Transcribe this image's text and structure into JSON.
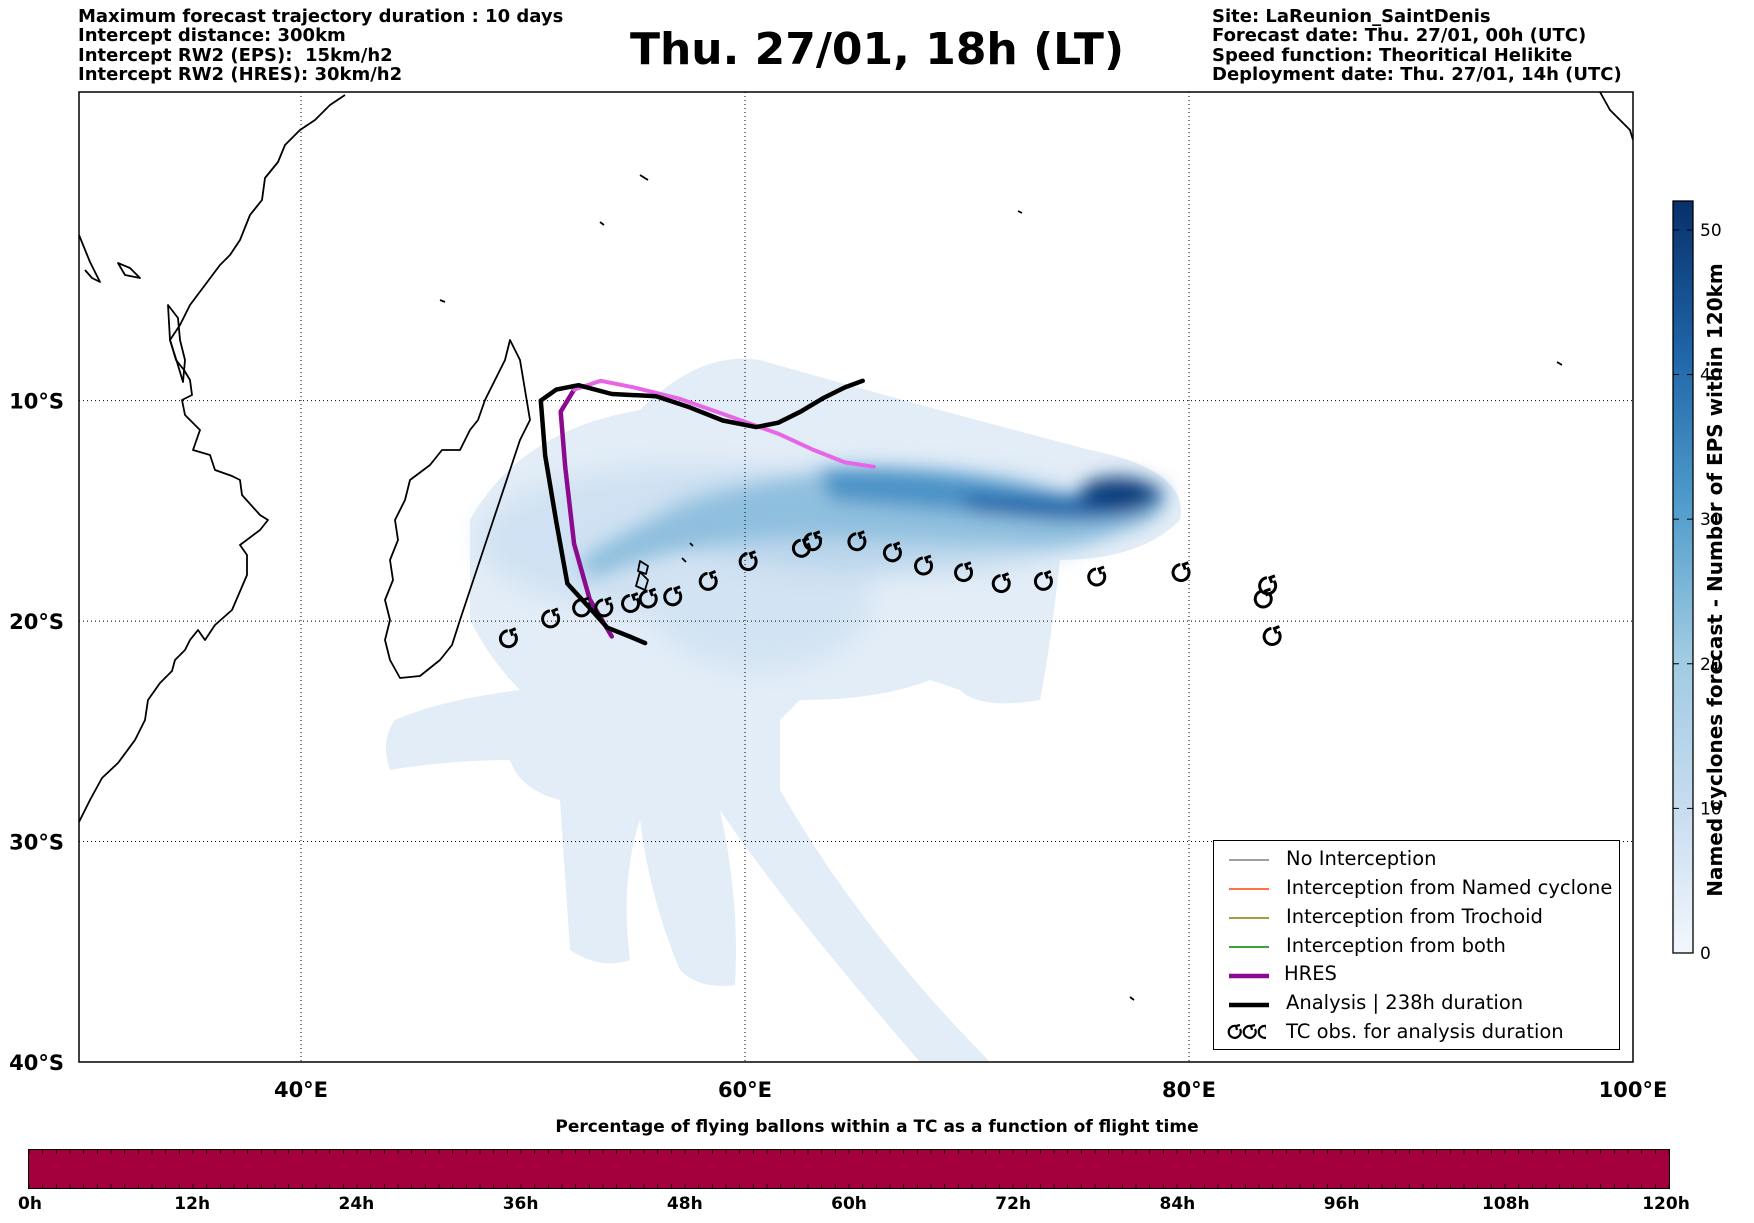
{
  "header_left": [
    "Maximum forecast trajectory duration : 10 days",
    "Intercept distance: 300km",
    "Intercept RW2 (EPS):  15km/h2",
    "Intercept RW2 (HRES): 30km/h2"
  ],
  "header_right": [
    "Site: LaReunion_SaintDenis",
    "Forecast date: Thu. 27/01, 00h (UTC)",
    "Speed function: Theoritical Helikite",
    "Deployment date: Thu. 27/01, 14h (UTC)"
  ],
  "title": "Thu. 27/01, 18h (LT)",
  "map": {
    "lon_range": [
      30,
      100
    ],
    "lat_range": [
      -40,
      4
    ],
    "lon_ticks": [
      "40°E",
      "60°E",
      "80°E",
      "100°E"
    ],
    "lat_ticks": [
      "10°S",
      "20°S",
      "30°S",
      "40°S"
    ],
    "grid": "dotted",
    "colors": {
      "hres": "#8b0b8f",
      "hres_light": "#e766e7",
      "analysis": "#000000",
      "no_interception": "#808080",
      "interception_named_cyclone": "#ff4500",
      "interception_trochoid": "#808000",
      "interception_both": "#008000",
      "density_low": "#deebf7",
      "density_high": "#08306b"
    },
    "hres_track": [
      [
        54.0,
        -20.7
      ],
      [
        53.0,
        -19.0
      ],
      [
        52.3,
        -16.5
      ],
      [
        51.9,
        -13.0
      ],
      [
        51.7,
        -10.5
      ],
      [
        52.3,
        -9.5
      ],
      [
        53.5,
        -9.1
      ],
      [
        55.0,
        -9.4
      ],
      [
        57.0,
        -9.9
      ],
      [
        59.0,
        -10.6
      ],
      [
        61.5,
        -11.5
      ],
      [
        63.0,
        -12.2
      ],
      [
        64.5,
        -12.8
      ],
      [
        65.8,
        -13.0
      ]
    ],
    "analysis_track": [
      [
        55.5,
        -21.0
      ],
      [
        54.8,
        -20.7
      ],
      [
        53.8,
        -20.3
      ],
      [
        53.0,
        -19.4
      ],
      [
        52.0,
        -18.3
      ],
      [
        51.5,
        -15.5
      ],
      [
        51.0,
        -12.5
      ],
      [
        50.8,
        -10.0
      ],
      [
        51.5,
        -9.5
      ],
      [
        52.5,
        -9.3
      ],
      [
        54.0,
        -9.7
      ],
      [
        56.0,
        -9.8
      ],
      [
        57.5,
        -10.3
      ],
      [
        59.0,
        -10.9
      ],
      [
        60.5,
        -11.2
      ],
      [
        61.5,
        -11.0
      ],
      [
        62.5,
        -10.5
      ],
      [
        63.5,
        -9.9
      ],
      [
        64.5,
        -9.4
      ],
      [
        65.3,
        -9.1
      ]
    ],
    "tc_obs": [
      [
        49.4,
        -20.8
      ],
      [
        51.3,
        -19.9
      ],
      [
        52.7,
        -19.4
      ],
      [
        53.7,
        -19.4
      ],
      [
        54.9,
        -19.2
      ],
      [
        55.7,
        -19.0
      ],
      [
        56.8,
        -18.9
      ],
      [
        58.4,
        -18.2
      ],
      [
        60.2,
        -17.3
      ],
      [
        62.6,
        -16.7
      ],
      [
        63.1,
        -16.4
      ],
      [
        65.1,
        -16.4
      ],
      [
        66.7,
        -16.9
      ],
      [
        68.1,
        -17.5
      ],
      [
        69.9,
        -17.8
      ],
      [
        71.6,
        -18.3
      ],
      [
        73.5,
        -18.2
      ],
      [
        75.9,
        -18.0
      ],
      [
        79.7,
        -17.8
      ],
      [
        83.4,
        -19.0
      ],
      [
        83.6,
        -18.4
      ],
      [
        83.8,
        -20.7
      ]
    ]
  },
  "colorbar": {
    "label": "Named cyclones forecast - Number of EPS within 120km",
    "ticks": [
      "0",
      "10",
      "20",
      "30",
      "40",
      "50"
    ],
    "max": 52
  },
  "legend": [
    {
      "label": "No Interception",
      "color": "#808080",
      "style": "thin"
    },
    {
      "label": "Interception from Named cyclone",
      "color": "#ff4500",
      "style": "thin"
    },
    {
      "label": "Interception from Trochoid",
      "color": "#808000",
      "style": "thin"
    },
    {
      "label": "Interception from both",
      "color": "#008000",
      "style": "thin"
    },
    {
      "label": "HRES",
      "color": "#8b0b8f",
      "style": "thick"
    },
    {
      "label": "Analysis | 238h duration",
      "color": "#000000",
      "style": "thick"
    },
    {
      "label": "TC obs. for analysis duration",
      "color": "#000000",
      "style": "symbol"
    }
  ],
  "bottom_title": "Percentage of flying ballons within a TC as a function of flight time",
  "time_labels": [
    "0h",
    "12h",
    "24h",
    "36h",
    "48h",
    "60h",
    "72h",
    "84h",
    "96h",
    "108h",
    "120h"
  ],
  "timebar_color": "#a3003d"
}
